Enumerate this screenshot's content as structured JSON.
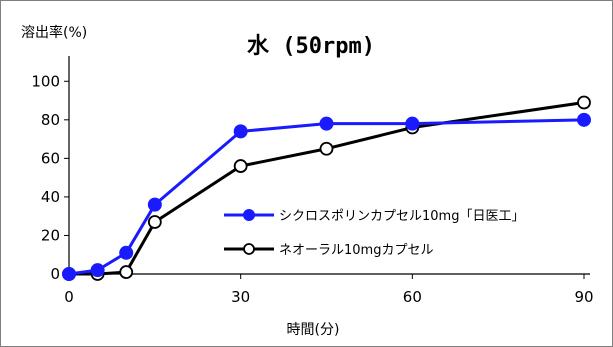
{
  "chart_data": {
    "type": "line",
    "title": "水 (50rpm)",
    "ylabel": "溶出率(%)",
    "xlabel": "時間(分)",
    "xlim": [
      0,
      90
    ],
    "ylim": [
      0,
      110
    ],
    "xticks": [
      0,
      30,
      60,
      90
    ],
    "yticks": [
      0,
      20,
      40,
      60,
      80,
      100
    ],
    "grid": false,
    "legend_position": "center-right",
    "series": [
      {
        "name": "シクロスポリンカプセル10mg「日医工」",
        "color": "#1a1aff",
        "marker": "filled-circle",
        "x": [
          0,
          5,
          10,
          15,
          30,
          45,
          60,
          90
        ],
        "y": [
          0,
          2,
          11,
          36,
          74,
          78,
          78,
          80
        ]
      },
      {
        "name": "ネオーラル10mgカプセル",
        "color": "#000000",
        "marker": "open-circle",
        "x": [
          0,
          5,
          10,
          15,
          30,
          45,
          60,
          90
        ],
        "y": [
          0,
          0,
          1,
          27,
          56,
          65,
          76,
          89
        ]
      }
    ]
  }
}
